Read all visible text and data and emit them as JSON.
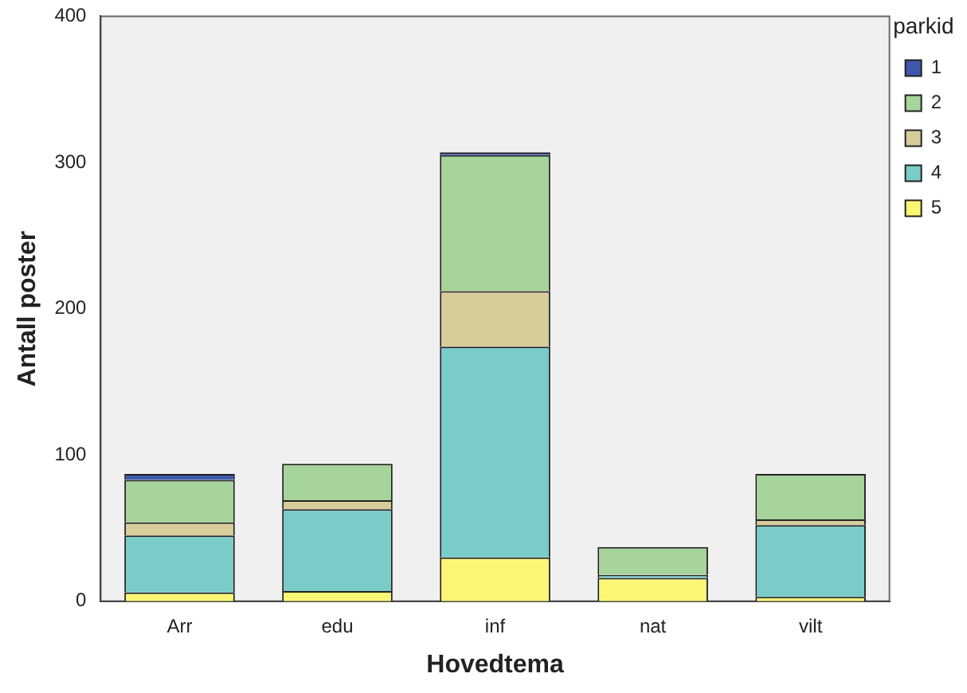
{
  "chart_data": {
    "type": "bar",
    "stacked": true,
    "xlabel": "Hovedtema",
    "ylabel": "Antall poster",
    "legend_title": "parkid",
    "legend": "right",
    "categories": [
      "Arr",
      "edu",
      "inf",
      "nat",
      "vilt"
    ],
    "series": [
      {
        "name": "5",
        "color": "#fbf775",
        "values": [
          6,
          7,
          30,
          16,
          3
        ]
      },
      {
        "name": "4",
        "color": "#79ccc7",
        "values": [
          39,
          56,
          144,
          2,
          49
        ]
      },
      {
        "name": "3",
        "color": "#d6cd9b",
        "values": [
          9,
          6,
          38,
          null,
          4
        ]
      },
      {
        "name": "2",
        "color": "#a6d49b",
        "values": [
          29,
          25,
          93,
          19,
          31
        ]
      },
      {
        "name": "1",
        "color": "#3e58ac",
        "values": [
          4,
          null,
          2,
          null,
          null
        ]
      }
    ],
    "ylim": [
      0,
      400
    ],
    "yticks": [
      0,
      100,
      200,
      300,
      400
    ],
    "grid": false
  }
}
